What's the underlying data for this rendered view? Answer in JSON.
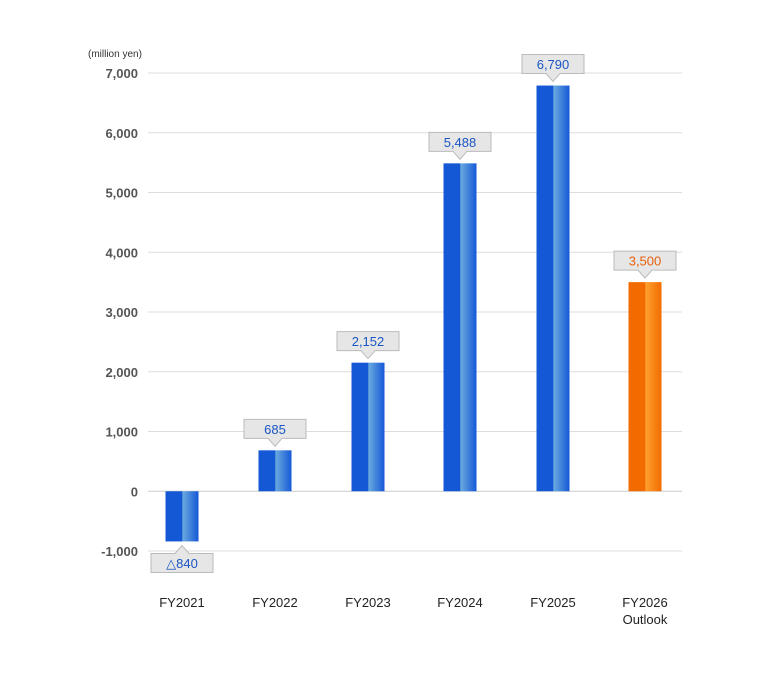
{
  "chart_data": {
    "type": "bar",
    "unit_label": "(million yen)",
    "categories": [
      {
        "line1": "FY2021",
        "line2": ""
      },
      {
        "line1": "FY2022",
        "line2": ""
      },
      {
        "line1": "FY2023",
        "line2": ""
      },
      {
        "line1": "FY2024",
        "line2": ""
      },
      {
        "line1": "FY2025",
        "line2": ""
      },
      {
        "line1": "FY2026",
        "line2": "Outlook"
      }
    ],
    "values": [
      -840,
      685,
      2152,
      5488,
      6790,
      3500
    ],
    "data_labels": [
      "△840",
      "685",
      "2,152",
      "5,488",
      "6,790",
      "3,500"
    ],
    "bar_kind": [
      "actual",
      "actual",
      "actual",
      "actual",
      "actual",
      "outlook"
    ],
    "ylim": [
      -1000,
      7000
    ],
    "yticks": [
      {
        "value": 7000,
        "label": "7,000"
      },
      {
        "value": 6000,
        "label": "6,000"
      },
      {
        "value": 5000,
        "label": "5,000"
      },
      {
        "value": 4000,
        "label": "4,000"
      },
      {
        "value": 3000,
        "label": "3,000"
      },
      {
        "value": 2000,
        "label": "2,000"
      },
      {
        "value": 1000,
        "label": "1,000"
      },
      {
        "value": 0,
        "label": "0"
      },
      {
        "value": -1000,
        "label": "-1,000"
      }
    ],
    "grid": true,
    "colors": {
      "actual_dark": "#1558d6",
      "actual_light": "#6aaadf",
      "outlook_dark": "#f26b00",
      "outlook_light": "#ffa030",
      "actual_label_text": "#1a56c4",
      "outlook_label_text": "#e8600c",
      "callout_fill": "#e6e6e6",
      "callout_stroke": "#bbbbbb",
      "grid": "#dddddd",
      "zero_line": "#cccccc"
    }
  }
}
